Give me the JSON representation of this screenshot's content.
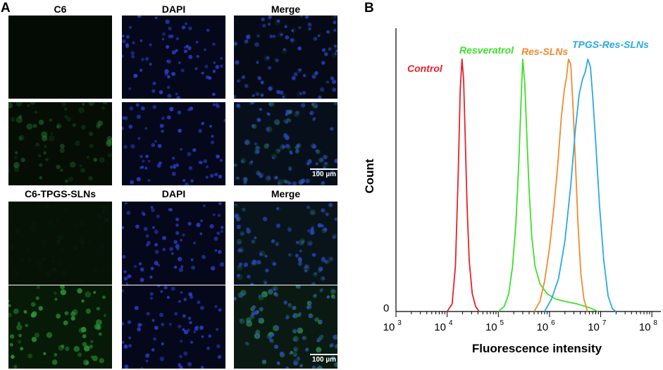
{
  "panel_a": {
    "letter": "A",
    "row1_headers": [
      "C6",
      "DAPI",
      "Merge"
    ],
    "row2_headers": [
      "C6-TPGS-SLNs",
      "DAPI",
      "Merge"
    ],
    "scale_bar": "100 µm",
    "colors": {
      "green_channel": "#2a9a3a",
      "blue_channel": "#2b3fd0",
      "background": "#000000"
    }
  },
  "panel_b": {
    "letter": "B"
  },
  "chart_data": {
    "type": "line",
    "xlabel": "Fluorescence intensity",
    "ylabel": "Count",
    "x_scale": "log",
    "xlim": [
      1000,
      150000000
    ],
    "y_zero_label": "0",
    "x_tick_labels": [
      {
        "base": "10",
        "exp": "3",
        "value": 1000
      },
      {
        "base": "10",
        "exp": "4",
        "value": 10000
      },
      {
        "base": "10",
        "exp": "5",
        "value": 100000
      },
      {
        "base": "10",
        "exp": "6",
        "value": 1000000
      },
      {
        "base": "10",
        "exp": "7",
        "value": 10000000
      },
      {
        "base": "10",
        "exp": "8",
        "value": 100000000
      }
    ],
    "grid": false,
    "series": [
      {
        "name": "Control",
        "color": "#e8202a",
        "x": [
          10000,
          12500,
          14500,
          16500,
          18000,
          19500,
          21000,
          22500,
          24500,
          27000,
          31000,
          36000,
          42000
        ],
        "y": [
          0,
          0.03,
          0.18,
          0.55,
          0.88,
          1.0,
          0.92,
          0.7,
          0.42,
          0.2,
          0.07,
          0.02,
          0
        ]
      },
      {
        "name": "Resveratrol",
        "color": "#3ee02a",
        "x": [
          100000,
          130000,
          160000,
          190000,
          220000,
          250000,
          280000,
          300000,
          330000,
          360000,
          400000,
          450000,
          520000,
          650000,
          900000,
          1300000,
          2000000,
          3500000,
          6000000,
          9000000
        ],
        "y": [
          0,
          0.02,
          0.07,
          0.18,
          0.35,
          0.58,
          0.85,
          1.0,
          0.9,
          0.7,
          0.48,
          0.3,
          0.18,
          0.11,
          0.07,
          0.05,
          0.04,
          0.03,
          0.015,
          0
        ]
      },
      {
        "name": "Res-SLNs",
        "color": "#f28a30",
        "x": [
          500000,
          650000,
          800000,
          1000000,
          1200000,
          1450000,
          1700000,
          1950000,
          2150000,
          2350000,
          2600000,
          2900000,
          3200000,
          3600000,
          4100000,
          4700000,
          5500000
        ],
        "y": [
          0,
          0.04,
          0.12,
          0.25,
          0.4,
          0.58,
          0.77,
          0.88,
          0.93,
          1.0,
          0.98,
          0.8,
          0.6,
          0.35,
          0.15,
          0.05,
          0
        ]
      },
      {
        "name": "TPGS-Res-SLNs",
        "color": "#29a9e6",
        "x": [
          800000,
          1100000,
          1500000,
          2000000,
          2600000,
          3200000,
          3800000,
          4400000,
          5000000,
          5600000,
          6300000,
          7000000,
          8000000,
          9500000,
          11500000,
          14000000,
          17000000,
          20000000
        ],
        "y": [
          0,
          0.05,
          0.13,
          0.28,
          0.5,
          0.72,
          0.86,
          0.92,
          0.95,
          1.0,
          0.97,
          0.85,
          0.67,
          0.42,
          0.2,
          0.06,
          0.01,
          0
        ]
      }
    ]
  }
}
